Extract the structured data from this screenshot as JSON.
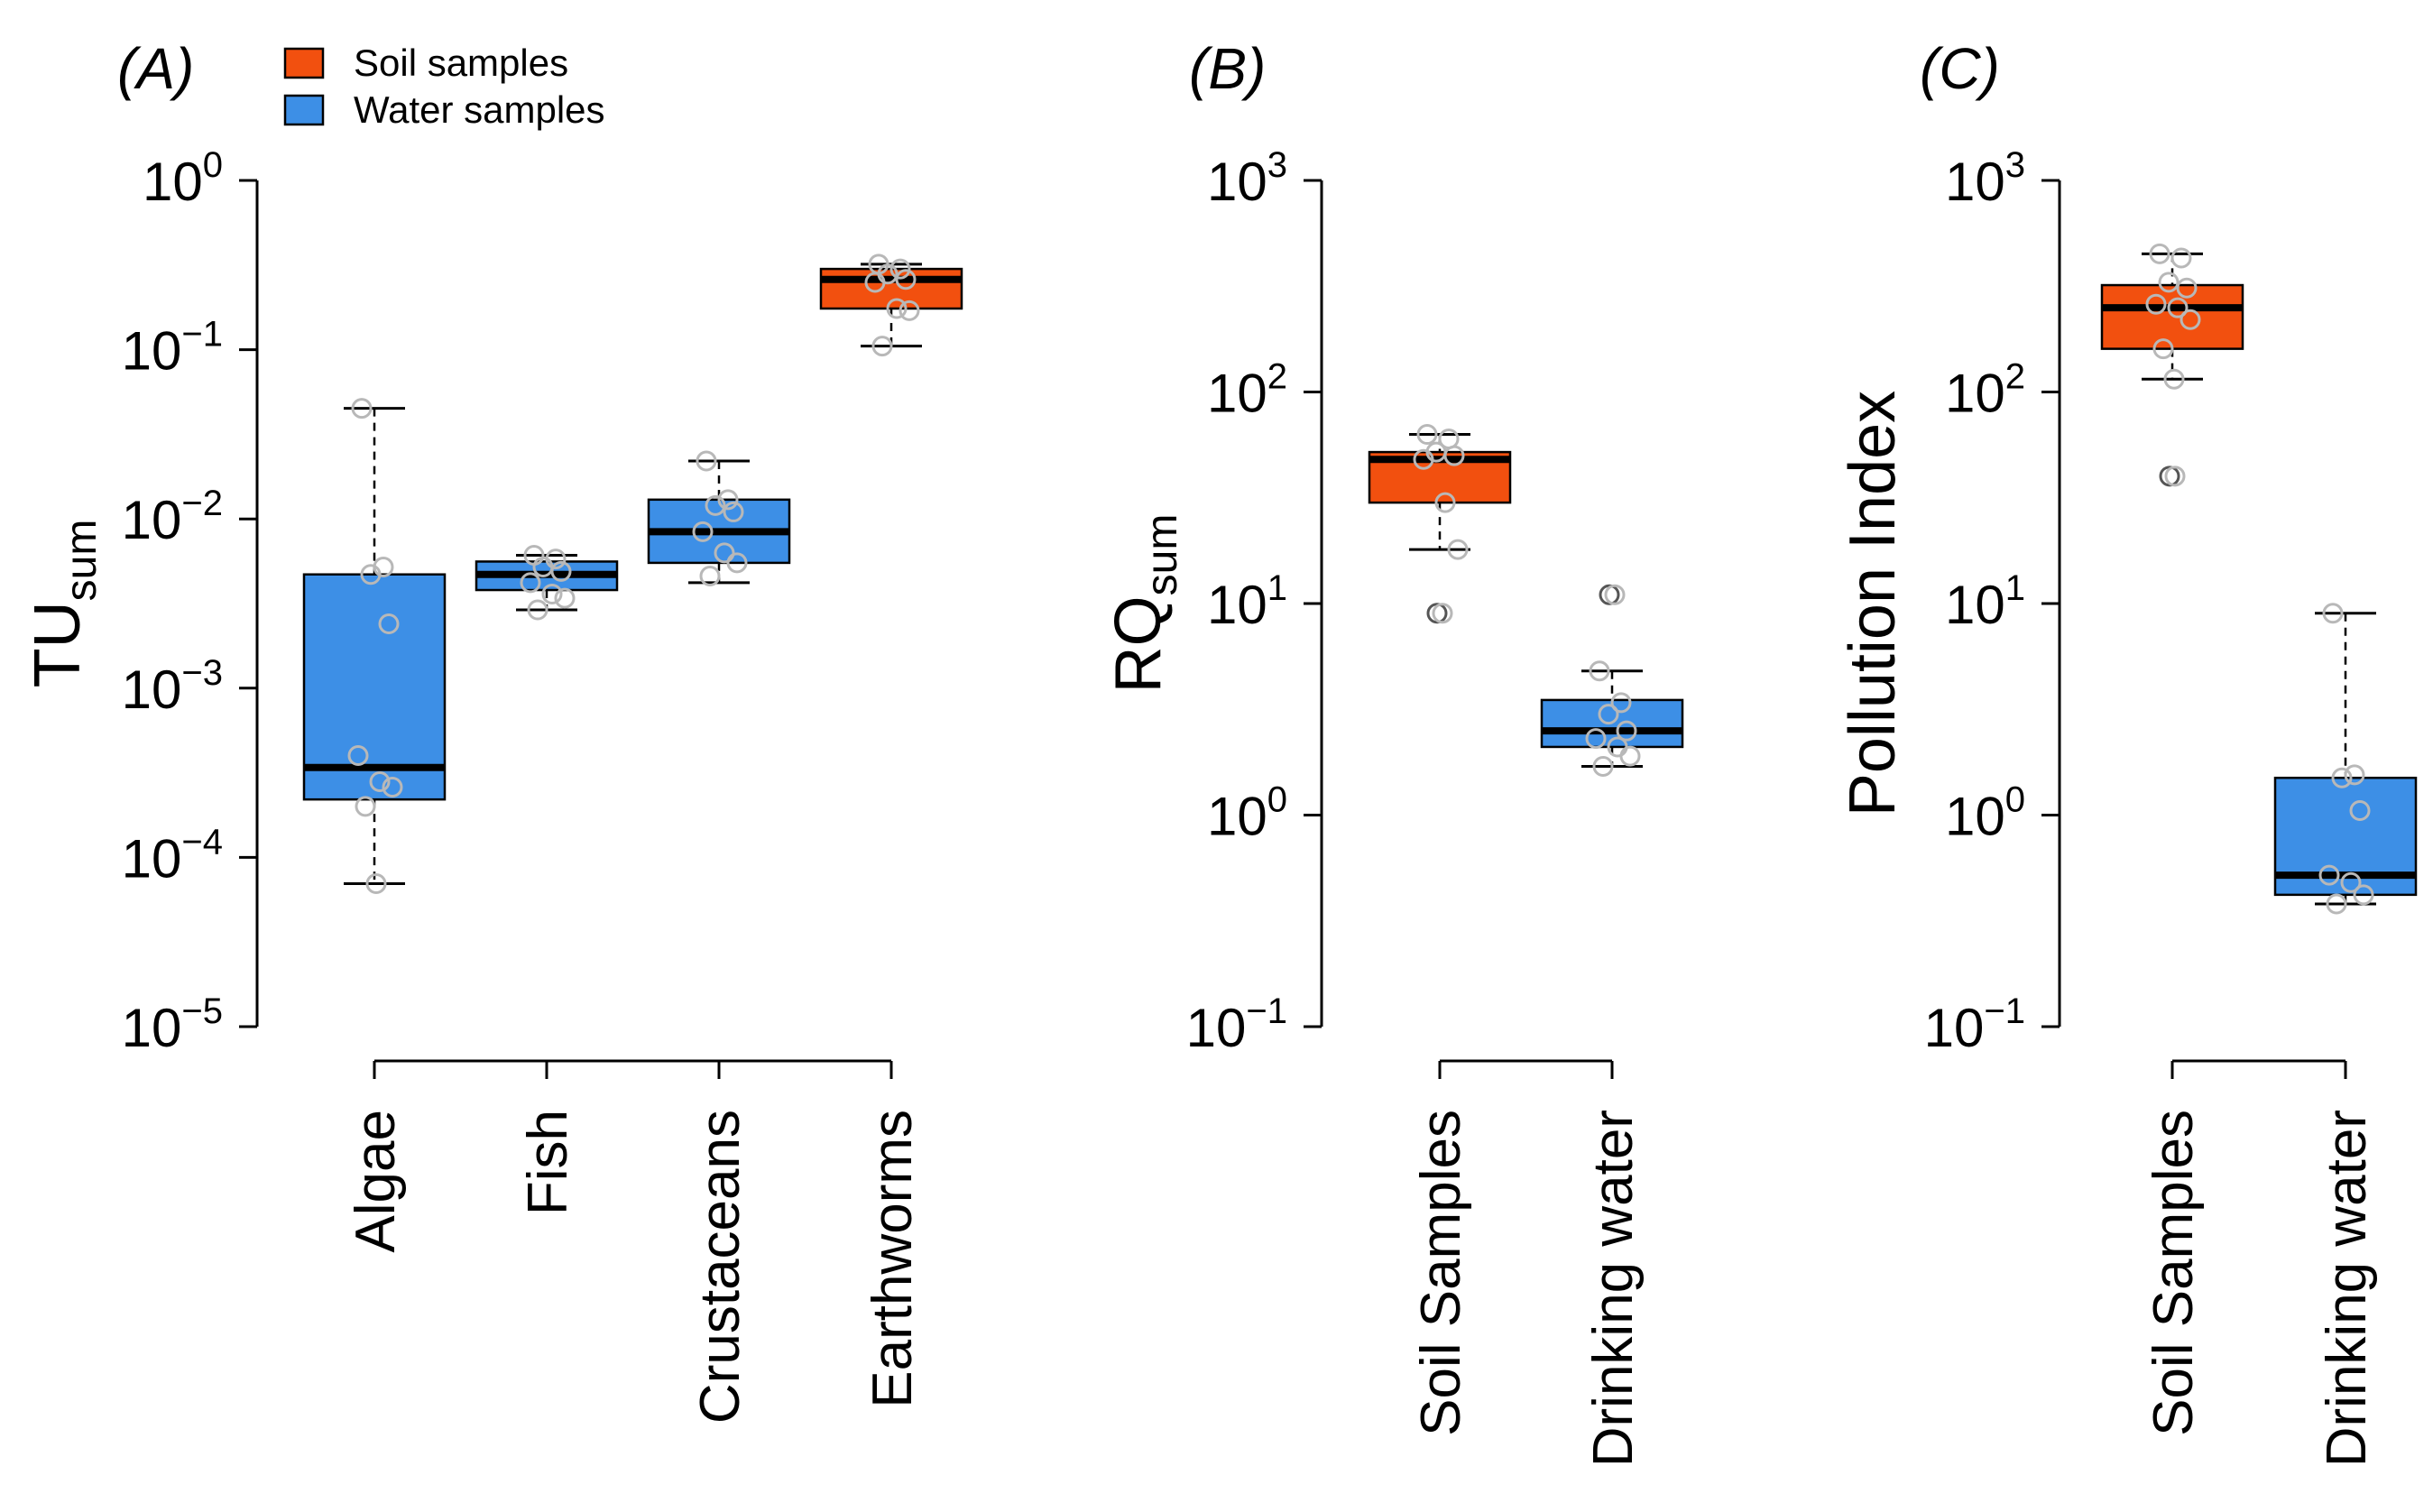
{
  "legend": {
    "items": [
      {
        "label": "Soil samples",
        "color": "#f2500f"
      },
      {
        "label": "Water samples",
        "color": "#3d8fe6"
      }
    ]
  },
  "colors": {
    "soil": "#f2500f",
    "water": "#3d8fe6",
    "point": "#b8b8b8"
  },
  "chart_data": [
    {
      "type": "boxplot",
      "panel": "(A)",
      "ylabel_main": "TU",
      "ylabel_sub": "sum",
      "yscale": "log10",
      "ylim_exp": [
        -5,
        0
      ],
      "yticks": [
        {
          "base": "10",
          "exp": "0",
          "v": 0
        },
        {
          "base": "10",
          "exp": "−1",
          "v": -1
        },
        {
          "base": "10",
          "exp": "−2",
          "v": -2
        },
        {
          "base": "10",
          "exp": "−3",
          "v": -3
        },
        {
          "base": "10",
          "exp": "−4",
          "v": -4
        },
        {
          "base": "10",
          "exp": "−5",
          "v": -5
        }
      ],
      "categories": [
        "Algae",
        "Fish",
        "Crustaceans",
        "Earthworms"
      ],
      "boxes": [
        {
          "group": "water",
          "min": 7e-05,
          "q1": 0.00022,
          "median": 0.00034,
          "q3": 0.0047,
          "max": 0.045,
          "points": [
            0.045,
            0.0052,
            0.0047,
            0.0024,
            0.0004,
            0.00028,
            0.00026,
            0.0002,
            7e-05
          ]
        },
        {
          "group": "water",
          "min": 0.0029,
          "q1": 0.0038,
          "median": 0.0047,
          "q3": 0.0056,
          "max": 0.0061,
          "points": [
            0.0061,
            0.0058,
            0.0052,
            0.0049,
            0.0042,
            0.0036,
            0.0034,
            0.0029
          ]
        },
        {
          "group": "water",
          "min": 0.0042,
          "q1": 0.0055,
          "median": 0.0084,
          "q3": 0.013,
          "max": 0.022,
          "points": [
            0.022,
            0.013,
            0.012,
            0.011,
            0.0084,
            0.0063,
            0.0055,
            0.0046
          ]
        },
        {
          "group": "soil",
          "min": 0.105,
          "q1": 0.175,
          "median": 0.26,
          "q3": 0.3,
          "max": 0.32,
          "points": [
            0.32,
            0.3,
            0.28,
            0.26,
            0.25,
            0.175,
            0.17,
            0.105
          ]
        }
      ]
    },
    {
      "type": "boxplot",
      "panel": "(B)",
      "ylabel_main": "RQ",
      "ylabel_sub": "sum",
      "yscale": "log10",
      "ylim_exp": [
        -1,
        3
      ],
      "yticks": [
        {
          "base": "10",
          "exp": "3",
          "v": 3
        },
        {
          "base": "10",
          "exp": "2",
          "v": 2
        },
        {
          "base": "10",
          "exp": "1",
          "v": 1
        },
        {
          "base": "10",
          "exp": "0",
          "v": 0
        },
        {
          "base": "10",
          "exp": "−1",
          "v": -1
        }
      ],
      "categories": [
        "Soil Samples",
        "Drinking water"
      ],
      "boxes": [
        {
          "group": "soil",
          "min": 18,
          "q1": 30,
          "median": 48,
          "q3": 52,
          "max": 63,
          "points": [
            63,
            60,
            52,
            50,
            48,
            30,
            18
          ],
          "outliers": [
            9
          ]
        },
        {
          "group": "water",
          "min": 1.7,
          "q1": 2.1,
          "median": 2.5,
          "q3": 3.5,
          "max": 4.8,
          "points": [
            4.8,
            3.4,
            3.0,
            2.5,
            2.3,
            2.1,
            1.9,
            1.7
          ],
          "outliers": [
            11
          ]
        }
      ]
    },
    {
      "type": "boxplot",
      "panel": "(C)",
      "ylabel_main": "Pollution Index",
      "ylabel_sub": "",
      "yscale": "log10",
      "ylim_exp": [
        -1,
        3
      ],
      "yticks": [
        {
          "base": "10",
          "exp": "3",
          "v": 3
        },
        {
          "base": "10",
          "exp": "2",
          "v": 2
        },
        {
          "base": "10",
          "exp": "1",
          "v": 1
        },
        {
          "base": "10",
          "exp": "0",
          "v": 0
        },
        {
          "base": "10",
          "exp": "−1",
          "v": -1
        }
      ],
      "categories": [
        "Soil Samples",
        "Drinking water"
      ],
      "boxes": [
        {
          "group": "soil",
          "min": 115,
          "q1": 160,
          "median": 250,
          "q3": 320,
          "max": 450,
          "points": [
            450,
            430,
            330,
            310,
            260,
            250,
            220,
            160,
            115
          ],
          "outliers": [
            40
          ]
        },
        {
          "group": "water",
          "min": 0.38,
          "q1": 0.42,
          "median": 0.52,
          "q3": 1.5,
          "max": 9,
          "points": [
            9,
            1.55,
            1.5,
            1.05,
            0.52,
            0.48,
            0.42,
            0.38
          ]
        }
      ]
    }
  ]
}
